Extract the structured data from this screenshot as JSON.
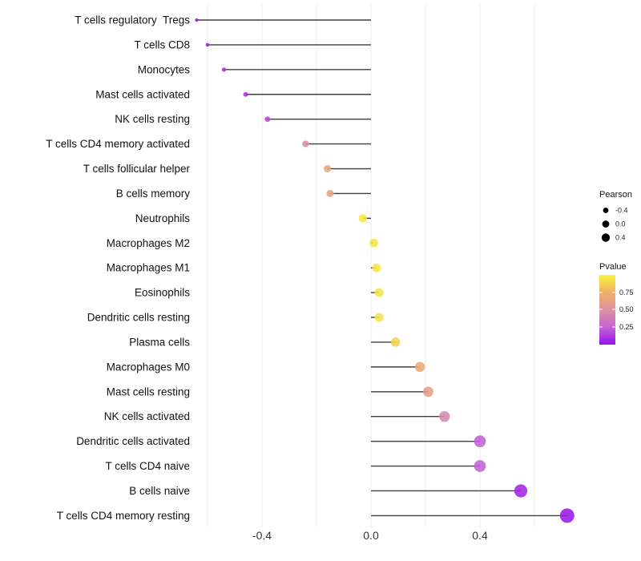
{
  "chart_data": {
    "type": "lollipop",
    "title": "",
    "xlabel": "",
    "ylabel": "",
    "x_ticks": [
      "-0.4",
      "0.0",
      "0.4"
    ],
    "x_tick_values": [
      -0.4,
      0.0,
      0.4
    ],
    "xlim": [
      -0.68,
      0.76
    ],
    "gridline_values": [
      -0.6,
      -0.4,
      -0.2,
      0.0,
      0.2,
      0.4,
      0.6
    ],
    "grid": "on",
    "legend_position": "right",
    "points": [
      {
        "label": "T cells regulatory  Tregs",
        "pearson": -0.64,
        "pvalue": 0.02
      },
      {
        "label": "T cells CD8",
        "pearson": -0.6,
        "pvalue": 0.04
      },
      {
        "label": "Monocytes",
        "pearson": -0.54,
        "pvalue": 0.07
      },
      {
        "label": "Mast cells activated",
        "pearson": -0.46,
        "pvalue": 0.1
      },
      {
        "label": "NK cells resting",
        "pearson": -0.38,
        "pvalue": 0.16
      },
      {
        "label": "T cells CD4 memory activated",
        "pearson": -0.24,
        "pvalue": 0.47
      },
      {
        "label": "T cells follicular helper",
        "pearson": -0.16,
        "pvalue": 0.66
      },
      {
        "label": "B cells memory",
        "pearson": -0.15,
        "pvalue": 0.66
      },
      {
        "label": "Neutrophils",
        "pearson": -0.03,
        "pvalue": 0.95
      },
      {
        "label": "Macrophages M2",
        "pearson": 0.01,
        "pvalue": 0.95
      },
      {
        "label": "Macrophages M1",
        "pearson": 0.02,
        "pvalue": 0.95
      },
      {
        "label": "Eosinophils",
        "pearson": 0.03,
        "pvalue": 0.94
      },
      {
        "label": "Dendritic cells resting",
        "pearson": 0.03,
        "pvalue": 0.94
      },
      {
        "label": "Plasma cells",
        "pearson": 0.09,
        "pvalue": 0.88
      },
      {
        "label": "Macrophages M0",
        "pearson": 0.18,
        "pvalue": 0.7
      },
      {
        "label": "Mast cells resting",
        "pearson": 0.21,
        "pvalue": 0.6
      },
      {
        "label": "NK cells activated",
        "pearson": 0.27,
        "pvalue": 0.45
      },
      {
        "label": "Dendritic cells activated",
        "pearson": 0.4,
        "pvalue": 0.24
      },
      {
        "label": "T cells CD4 naive",
        "pearson": 0.4,
        "pvalue": 0.24
      },
      {
        "label": "B cells naive",
        "pearson": 0.55,
        "pvalue": 0.06
      },
      {
        "label": "T cells CD4 memory resting",
        "pearson": 0.72,
        "pvalue": 0.02
      }
    ],
    "legend": {
      "size": {
        "title": "Pearson",
        "entries": [
          "-0.4",
          "0.0",
          "0.4"
        ]
      },
      "color": {
        "title": "Pvalue",
        "ticks": [
          "0.75",
          "0.50",
          "0.25"
        ],
        "tick_values": [
          0.75,
          0.5,
          0.25
        ],
        "gradient_low_color": "#9712EB",
        "gradient_high_color": "#F9F23C"
      }
    }
  },
  "colors": {
    "background": "#ffffff",
    "gridline": "#ececec",
    "stem": "#3f3f3f",
    "legend_dot": "#000000",
    "gradient_stops": [
      "#9712EB",
      "#C465D4",
      "#DD92A2",
      "#F0B066",
      "#F9F23C"
    ]
  }
}
